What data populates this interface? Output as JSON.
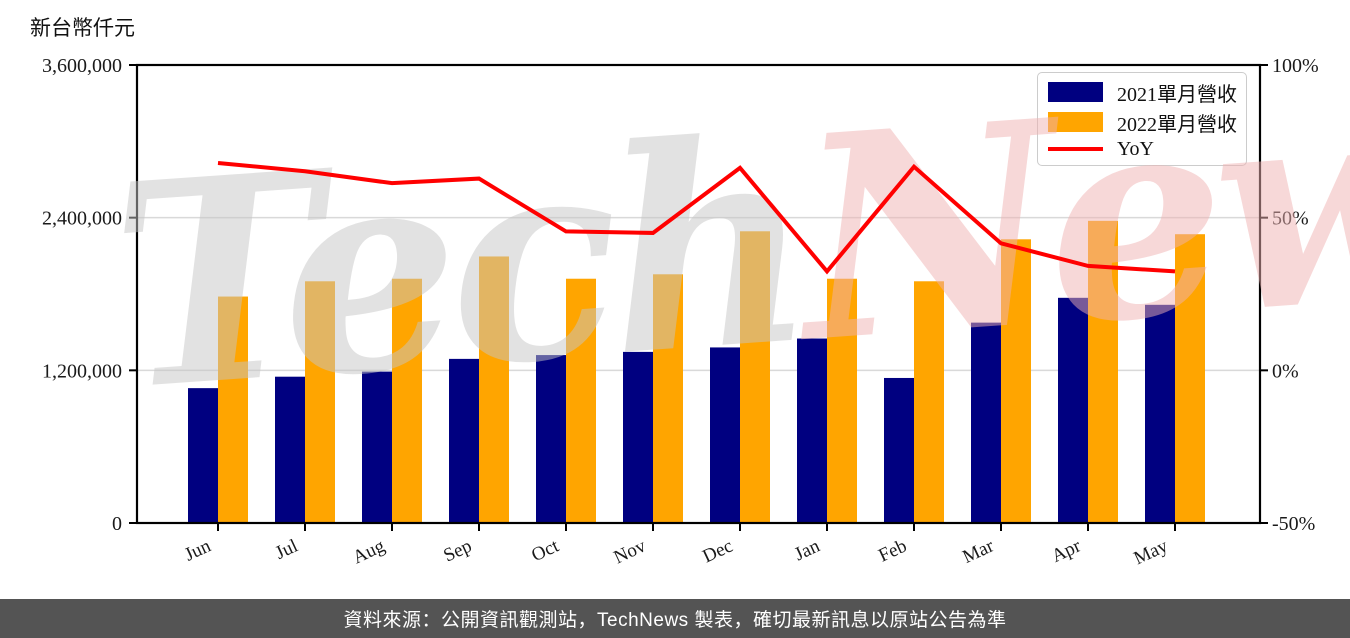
{
  "page": {
    "y_axis_title": "新台幣仟元"
  },
  "legend": {
    "items": [
      "2021單月營收",
      "2022單月營收",
      "YoY"
    ]
  },
  "watermark": {
    "part1": "Tech",
    "part2": "News"
  },
  "footer": {
    "text": "資料來源：公開資訊觀測站，TechNews 製表，確切最新訊息以原站公告為準"
  },
  "colors": {
    "bar_2021": "#000080",
    "bar_2022": "#FFA500",
    "yoy_line": "#FF0000",
    "grid": "#D9D9D9",
    "axis": "#000000",
    "footer_bg": "#545454",
    "watermark_gray": "#C6C6C6",
    "watermark_pink": "#F0B2B2"
  },
  "chart_data": {
    "type": "bar+line",
    "title": "",
    "categories": [
      "Jun",
      "Jul",
      "Aug",
      "Sep",
      "Oct",
      "Nov",
      "Dec",
      "Jan",
      "Feb",
      "Mar",
      "Apr",
      "May"
    ],
    "series": [
      {
        "name": "2021單月營收",
        "type": "bar",
        "axis": "left",
        "color": "#000080",
        "values": [
          1060000,
          1150000,
          1190000,
          1290000,
          1320000,
          1345000,
          1380000,
          1450000,
          1140000,
          1575000,
          1770000,
          1715000
        ]
      },
      {
        "name": "2022單月營收",
        "type": "bar",
        "axis": "left",
        "color": "#FFA500",
        "values": [
          1780000,
          1900000,
          1920000,
          2095000,
          1920000,
          1955000,
          2293000,
          1920000,
          1900000,
          2230000,
          2375000,
          2270000
        ]
      },
      {
        "name": "YoY",
        "type": "line",
        "axis": "right",
        "unit": "%",
        "values": [
          67.9,
          65.2,
          61.3,
          62.8,
          45.5,
          45.0,
          66.3,
          32.4,
          66.7,
          41.6,
          34.2,
          32.4
        ]
      }
    ],
    "left_axis": {
      "title": "新台幣仟元",
      "min": 0,
      "max": 3600000,
      "ticks": [
        {
          "value": 0,
          "label": "0"
        },
        {
          "value": 1200000,
          "label": "1,200,000"
        },
        {
          "value": 2400000,
          "label": "2,400,000"
        },
        {
          "value": 3600000,
          "label": "3,600,000"
        }
      ]
    },
    "right_axis": {
      "min": -50,
      "max": 100,
      "ticks": [
        {
          "value": -50,
          "label": "-50%"
        },
        {
          "value": 0,
          "label": "0%"
        },
        {
          "value": 50,
          "label": "50%"
        },
        {
          "value": 100,
          "label": "100%"
        }
      ]
    },
    "grid": true,
    "legend_position": "top-right"
  }
}
